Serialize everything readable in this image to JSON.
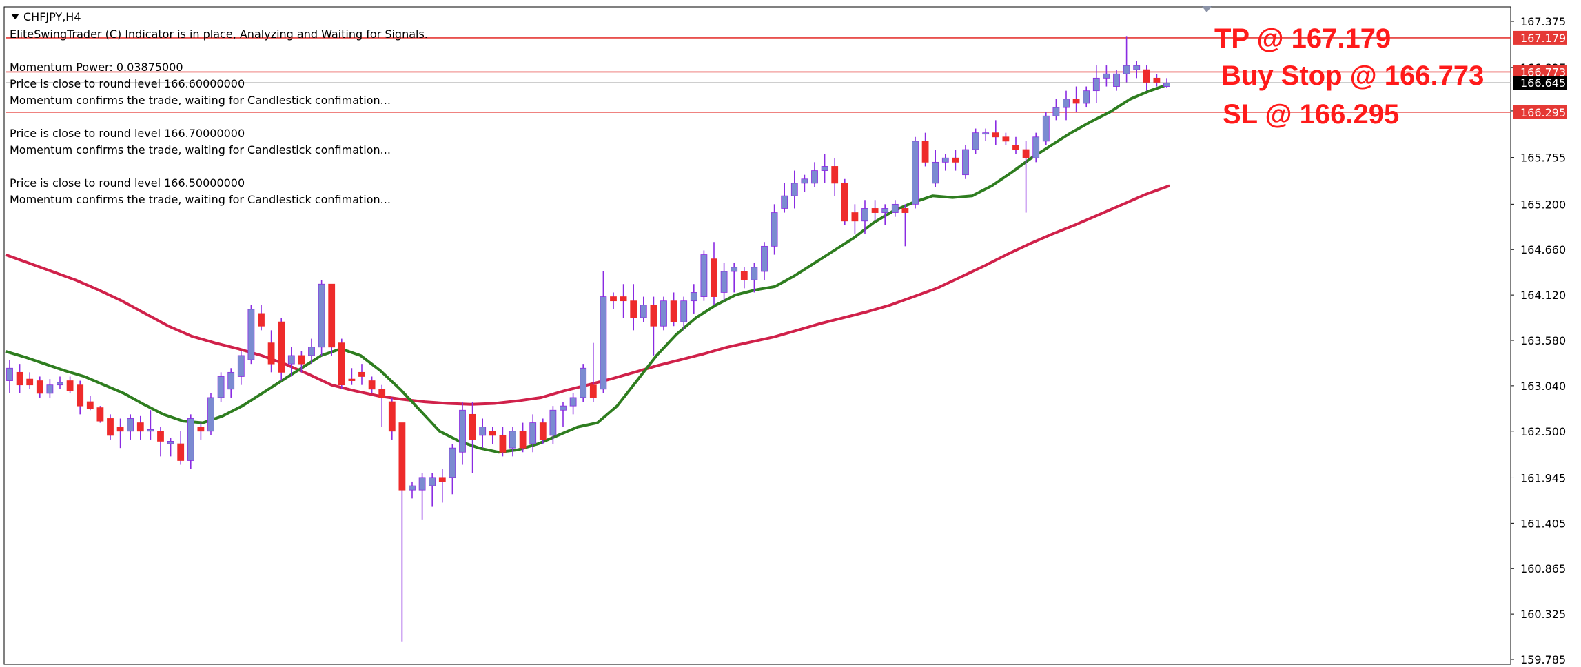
{
  "header": {
    "symbol": "CHFJPY,H4",
    "indicator_line": "EliteSwingTrader (C) Indicator is in place, Analyzing and Waiting for Signals.",
    "momentum_power": "Momentum Power: 0.03875000",
    "msg1_a": "Price is close to round level 166.60000000",
    "msg1_b": "Momentum confirms the trade, waiting for Candlestick confimation...",
    "msg2_a": "Price is close to round level 166.70000000",
    "msg2_b": "Momentum confirms the trade, waiting for Candlestick confimation...",
    "msg3_a": "Price is close to round level 166.50000000",
    "msg3_b": "Momentum confirms the trade, waiting for Candlestick confimation..."
  },
  "annotations": {
    "tp": "TP @ 167.179",
    "buy_stop": "Buy Stop @ 166.773",
    "sl": "SL @ 166.295"
  },
  "colors": {
    "bull": "#7b8bd1",
    "bear": "#ee2b2b",
    "wick": "#8a2be2",
    "ma_fast": "#2e7d1f",
    "ma_slow": "#d0214a",
    "level_line": "#e53935",
    "price_line": "#9e9e9e"
  },
  "chart_data": {
    "type": "candlestick",
    "symbol": "CHFJPY",
    "timeframe": "H4",
    "ylim": [
      159.785,
      167.375
    ],
    "y_ticks": [
      "167.375",
      "166.827",
      "166.310",
      "165.755",
      "165.200",
      "164.660",
      "164.120",
      "163.580",
      "163.040",
      "162.500",
      "161.945",
      "161.405",
      "160.865",
      "160.325",
      "159.785"
    ],
    "levels": [
      {
        "name": "TP",
        "value": 167.179,
        "label": "167.179"
      },
      {
        "name": "Buy Stop",
        "value": 166.773,
        "label": "166.773"
      },
      {
        "name": "Current price",
        "value": 166.645,
        "label": "166.645"
      },
      {
        "name": "SL",
        "value": 166.295,
        "label": "166.295"
      }
    ],
    "candles": [
      {
        "o": 163.1,
        "h": 163.35,
        "l": 162.95,
        "c": 163.25
      },
      {
        "o": 163.2,
        "h": 163.3,
        "l": 162.95,
        "c": 163.05
      },
      {
        "o": 163.12,
        "h": 163.2,
        "l": 163.0,
        "c": 163.05
      },
      {
        "o": 163.1,
        "h": 163.15,
        "l": 162.9,
        "c": 162.95
      },
      {
        "o": 162.95,
        "h": 163.12,
        "l": 162.9,
        "c": 163.05
      },
      {
        "o": 163.05,
        "h": 163.15,
        "l": 163.0,
        "c": 163.08
      },
      {
        "o": 163.1,
        "h": 163.15,
        "l": 162.95,
        "c": 162.98
      },
      {
        "o": 163.05,
        "h": 163.1,
        "l": 162.7,
        "c": 162.8
      },
      {
        "o": 162.85,
        "h": 162.92,
        "l": 162.75,
        "c": 162.77
      },
      {
        "o": 162.78,
        "h": 162.8,
        "l": 162.6,
        "c": 162.62
      },
      {
        "o": 162.65,
        "h": 162.7,
        "l": 162.4,
        "c": 162.45
      },
      {
        "o": 162.55,
        "h": 162.65,
        "l": 162.3,
        "c": 162.5
      },
      {
        "o": 162.5,
        "h": 162.7,
        "l": 162.4,
        "c": 162.65
      },
      {
        "o": 162.6,
        "h": 162.68,
        "l": 162.4,
        "c": 162.5
      },
      {
        "o": 162.5,
        "h": 162.75,
        "l": 162.4,
        "c": 162.52
      },
      {
        "o": 162.5,
        "h": 162.55,
        "l": 162.2,
        "c": 162.38
      },
      {
        "o": 162.35,
        "h": 162.42,
        "l": 162.2,
        "c": 162.38
      },
      {
        "o": 162.35,
        "h": 162.5,
        "l": 162.1,
        "c": 162.15
      },
      {
        "o": 162.15,
        "h": 162.7,
        "l": 162.05,
        "c": 162.65
      },
      {
        "o": 162.55,
        "h": 162.6,
        "l": 162.4,
        "c": 162.5
      },
      {
        "o": 162.5,
        "h": 162.95,
        "l": 162.45,
        "c": 162.9
      },
      {
        "o": 162.9,
        "h": 163.2,
        "l": 162.85,
        "c": 163.15
      },
      {
        "o": 163.0,
        "h": 163.25,
        "l": 162.9,
        "c": 163.2
      },
      {
        "o": 163.15,
        "h": 163.45,
        "l": 163.05,
        "c": 163.4
      },
      {
        "o": 163.35,
        "h": 164.0,
        "l": 163.3,
        "c": 163.95
      },
      {
        "o": 163.9,
        "h": 164.0,
        "l": 163.7,
        "c": 163.75
      },
      {
        "o": 163.55,
        "h": 163.7,
        "l": 163.2,
        "c": 163.3
      },
      {
        "o": 163.8,
        "h": 163.85,
        "l": 163.1,
        "c": 163.2
      },
      {
        "o": 163.3,
        "h": 163.5,
        "l": 163.15,
        "c": 163.4
      },
      {
        "o": 163.4,
        "h": 163.45,
        "l": 163.2,
        "c": 163.3
      },
      {
        "o": 163.4,
        "h": 163.6,
        "l": 163.3,
        "c": 163.5
      },
      {
        "o": 163.5,
        "h": 164.3,
        "l": 163.4,
        "c": 164.25
      },
      {
        "o": 164.25,
        "h": 164.25,
        "l": 163.4,
        "c": 163.5
      },
      {
        "o": 163.55,
        "h": 163.6,
        "l": 163.0,
        "c": 163.05
      },
      {
        "o": 163.12,
        "h": 163.25,
        "l": 163.05,
        "c": 163.1
      },
      {
        "o": 163.2,
        "h": 163.3,
        "l": 163.05,
        "c": 163.15
      },
      {
        "o": 163.1,
        "h": 163.15,
        "l": 162.95,
        "c": 163.0
      },
      {
        "o": 163.0,
        "h": 163.05,
        "l": 162.55,
        "c": 162.9
      },
      {
        "o": 162.85,
        "h": 162.9,
        "l": 162.4,
        "c": 162.5
      },
      {
        "o": 162.6,
        "h": 162.6,
        "l": 160.0,
        "c": 161.8
      },
      {
        "o": 161.8,
        "h": 161.9,
        "l": 161.7,
        "c": 161.85
      },
      {
        "o": 161.8,
        "h": 162.0,
        "l": 161.45,
        "c": 161.95
      },
      {
        "o": 161.85,
        "h": 162.0,
        "l": 161.6,
        "c": 161.95
      },
      {
        "o": 161.95,
        "h": 162.05,
        "l": 161.65,
        "c": 161.9
      },
      {
        "o": 161.95,
        "h": 162.35,
        "l": 161.75,
        "c": 162.3
      },
      {
        "o": 162.25,
        "h": 162.85,
        "l": 162.1,
        "c": 162.75
      },
      {
        "o": 162.7,
        "h": 162.85,
        "l": 162.0,
        "c": 162.4
      },
      {
        "o": 162.45,
        "h": 162.65,
        "l": 162.3,
        "c": 162.55
      },
      {
        "o": 162.5,
        "h": 162.55,
        "l": 162.35,
        "c": 162.45
      },
      {
        "o": 162.45,
        "h": 162.55,
        "l": 162.2,
        "c": 162.25
      },
      {
        "o": 162.3,
        "h": 162.55,
        "l": 162.2,
        "c": 162.5
      },
      {
        "o": 162.5,
        "h": 162.6,
        "l": 162.25,
        "c": 162.3
      },
      {
        "o": 162.35,
        "h": 162.7,
        "l": 162.25,
        "c": 162.6
      },
      {
        "o": 162.6,
        "h": 162.65,
        "l": 162.35,
        "c": 162.4
      },
      {
        "o": 162.45,
        "h": 162.8,
        "l": 162.35,
        "c": 162.75
      },
      {
        "o": 162.75,
        "h": 162.85,
        "l": 162.55,
        "c": 162.8
      },
      {
        "o": 162.8,
        "h": 162.95,
        "l": 162.7,
        "c": 162.9
      },
      {
        "o": 162.9,
        "h": 163.3,
        "l": 162.85,
        "c": 163.25
      },
      {
        "o": 163.05,
        "h": 163.55,
        "l": 162.85,
        "c": 162.9
      },
      {
        "o": 163.0,
        "h": 164.4,
        "l": 162.95,
        "c": 164.1
      },
      {
        "o": 164.1,
        "h": 164.15,
        "l": 163.95,
        "c": 164.05
      },
      {
        "o": 164.1,
        "h": 164.25,
        "l": 163.85,
        "c": 164.05
      },
      {
        "o": 164.05,
        "h": 164.25,
        "l": 163.7,
        "c": 163.85
      },
      {
        "o": 163.85,
        "h": 164.1,
        "l": 163.8,
        "c": 164.0
      },
      {
        "o": 164.0,
        "h": 164.1,
        "l": 163.4,
        "c": 163.75
      },
      {
        "o": 163.75,
        "h": 164.1,
        "l": 163.7,
        "c": 164.05
      },
      {
        "o": 164.05,
        "h": 164.15,
        "l": 163.75,
        "c": 163.8
      },
      {
        "o": 163.8,
        "h": 164.1,
        "l": 163.7,
        "c": 164.05
      },
      {
        "o": 164.05,
        "h": 164.25,
        "l": 163.9,
        "c": 164.15
      },
      {
        "o": 164.1,
        "h": 164.65,
        "l": 164.05,
        "c": 164.6
      },
      {
        "o": 164.55,
        "h": 164.75,
        "l": 164.0,
        "c": 164.1
      },
      {
        "o": 164.15,
        "h": 164.5,
        "l": 164.05,
        "c": 164.4
      },
      {
        "o": 164.4,
        "h": 164.5,
        "l": 164.15,
        "c": 164.45
      },
      {
        "o": 164.4,
        "h": 164.45,
        "l": 164.2,
        "c": 164.3
      },
      {
        "o": 164.3,
        "h": 164.5,
        "l": 164.15,
        "c": 164.45
      },
      {
        "o": 164.4,
        "h": 164.75,
        "l": 164.3,
        "c": 164.7
      },
      {
        "o": 164.7,
        "h": 165.2,
        "l": 164.6,
        "c": 165.1
      },
      {
        "o": 165.15,
        "h": 165.45,
        "l": 165.1,
        "c": 165.3
      },
      {
        "o": 165.3,
        "h": 165.6,
        "l": 165.15,
        "c": 165.45
      },
      {
        "o": 165.45,
        "h": 165.55,
        "l": 165.35,
        "c": 165.5
      },
      {
        "o": 165.45,
        "h": 165.7,
        "l": 165.4,
        "c": 165.6
      },
      {
        "o": 165.6,
        "h": 165.8,
        "l": 165.45,
        "c": 165.65
      },
      {
        "o": 165.65,
        "h": 165.75,
        "l": 165.3,
        "c": 165.45
      },
      {
        "o": 165.45,
        "h": 165.5,
        "l": 164.95,
        "c": 165.0
      },
      {
        "o": 165.1,
        "h": 165.2,
        "l": 164.85,
        "c": 165.0
      },
      {
        "o": 165.0,
        "h": 165.25,
        "l": 164.85,
        "c": 165.15
      },
      {
        "o": 165.15,
        "h": 165.25,
        "l": 165.0,
        "c": 165.1
      },
      {
        "o": 165.1,
        "h": 165.2,
        "l": 164.95,
        "c": 165.15
      },
      {
        "o": 165.1,
        "h": 165.25,
        "l": 165.05,
        "c": 165.2
      },
      {
        "o": 165.15,
        "h": 165.2,
        "l": 164.7,
        "c": 165.1
      },
      {
        "o": 165.2,
        "h": 166.0,
        "l": 165.15,
        "c": 165.95
      },
      {
        "o": 165.95,
        "h": 166.05,
        "l": 165.65,
        "c": 165.7
      },
      {
        "o": 165.45,
        "h": 165.85,
        "l": 165.4,
        "c": 165.7
      },
      {
        "o": 165.7,
        "h": 165.8,
        "l": 165.6,
        "c": 165.75
      },
      {
        "o": 165.75,
        "h": 165.85,
        "l": 165.6,
        "c": 165.7
      },
      {
        "o": 165.55,
        "h": 165.9,
        "l": 165.5,
        "c": 165.85
      },
      {
        "o": 165.85,
        "h": 166.1,
        "l": 165.8,
        "c": 166.05
      },
      {
        "o": 166.05,
        "h": 166.1,
        "l": 165.95,
        "c": 166.05
      },
      {
        "o": 166.05,
        "h": 166.2,
        "l": 165.9,
        "c": 166.0
      },
      {
        "o": 166.0,
        "h": 166.05,
        "l": 165.9,
        "c": 165.95
      },
      {
        "o": 165.9,
        "h": 166.0,
        "l": 165.8,
        "c": 165.85
      },
      {
        "o": 165.85,
        "h": 165.95,
        "l": 165.1,
        "c": 165.75
      },
      {
        "o": 165.75,
        "h": 166.05,
        "l": 165.7,
        "c": 166.0
      },
      {
        "o": 165.95,
        "h": 166.3,
        "l": 165.9,
        "c": 166.25
      },
      {
        "o": 166.25,
        "h": 166.45,
        "l": 166.2,
        "c": 166.35
      },
      {
        "o": 166.35,
        "h": 166.55,
        "l": 166.2,
        "c": 166.45
      },
      {
        "o": 166.45,
        "h": 166.6,
        "l": 166.3,
        "c": 166.4
      },
      {
        "o": 166.4,
        "h": 166.6,
        "l": 166.35,
        "c": 166.55
      },
      {
        "o": 166.55,
        "h": 166.85,
        "l": 166.4,
        "c": 166.7
      },
      {
        "o": 166.7,
        "h": 166.85,
        "l": 166.6,
        "c": 166.75
      },
      {
        "o": 166.6,
        "h": 166.8,
        "l": 166.55,
        "c": 166.75
      },
      {
        "o": 166.75,
        "h": 167.2,
        "l": 166.65,
        "c": 166.85
      },
      {
        "o": 166.8,
        "h": 166.9,
        "l": 166.7,
        "c": 166.85
      },
      {
        "o": 166.8,
        "h": 166.85,
        "l": 166.55,
        "c": 166.65
      },
      {
        "o": 166.7,
        "h": 166.75,
        "l": 166.6,
        "c": 166.65
      },
      {
        "o": 166.6,
        "h": 166.7,
        "l": 166.58,
        "c": 166.64
      }
    ],
    "ma_fast": [
      163.45,
      163.38,
      163.3,
      163.22,
      163.15,
      163.05,
      162.95,
      162.82,
      162.7,
      162.62,
      162.6,
      162.68,
      162.8,
      162.95,
      163.1,
      163.25,
      163.4,
      163.48,
      163.4,
      163.22,
      163.0,
      162.75,
      162.5,
      162.38,
      162.3,
      162.25,
      162.28,
      162.35,
      162.45,
      162.55,
      162.6,
      162.8,
      163.1,
      163.4,
      163.65,
      163.85,
      164.0,
      164.12,
      164.18,
      164.22,
      164.35,
      164.5,
      164.65,
      164.8,
      164.98,
      165.12,
      165.22,
      165.3,
      165.28,
      165.3,
      165.42,
      165.58,
      165.75,
      165.9,
      166.05,
      166.18,
      166.3,
      166.45,
      166.55,
      166.63
    ],
    "ma_slow": [
      164.6,
      164.5,
      164.4,
      164.3,
      164.18,
      164.05,
      163.9,
      163.75,
      163.63,
      163.55,
      163.48,
      163.4,
      163.3,
      163.18,
      163.05,
      162.98,
      162.92,
      162.88,
      162.85,
      162.83,
      162.82,
      162.83,
      162.86,
      162.9,
      162.98,
      163.05,
      163.12,
      163.2,
      163.28,
      163.35,
      163.42,
      163.5,
      163.56,
      163.62,
      163.7,
      163.78,
      163.85,
      163.92,
      164.0,
      164.1,
      164.2,
      164.33,
      164.46,
      164.6,
      164.73,
      164.85,
      164.96,
      165.08,
      165.2,
      165.32,
      165.42
    ]
  }
}
